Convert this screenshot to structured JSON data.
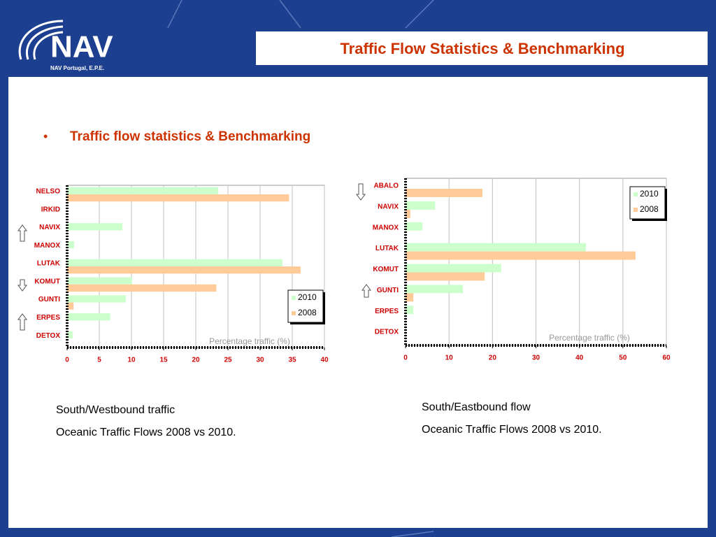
{
  "logo": {
    "name": "NAV",
    "subtitle": "NAV Portugal, E.P.E."
  },
  "title": "Traffic Flow Statistics & Benchmarking",
  "bullet": "Traffic flow statistics & Benchmarking",
  "chart_data": [
    {
      "type": "bar",
      "orientation": "horizontal",
      "categories": [
        "NELSO",
        "IRKID",
        "NAVIX",
        "MANOX",
        "LUTAK",
        "KOMUT",
        "GUNTI",
        "ERPES",
        "DETOX"
      ],
      "series": [
        {
          "name": "2010",
          "color": "#ccffcc",
          "values": [
            23.5,
            0,
            8.6,
            1.1,
            33.5,
            10.1,
            9.1,
            6.7,
            0.9
          ]
        },
        {
          "name": "2008",
          "color": "#ffcc99",
          "values": [
            34.5,
            0,
            0,
            0,
            36.3,
            23.2,
            1.0,
            0,
            0
          ]
        }
      ],
      "xlim": [
        0,
        40
      ],
      "xticks": [
        0,
        5,
        10,
        15,
        20,
        25,
        30,
        35,
        40
      ],
      "xlabel": "Percentage traffic (%)",
      "grid": true,
      "legend": "lower right",
      "captions": [
        "South/Westbound traffic",
        "Oceanic Traffic Flows 2008 vs 2010."
      ]
    },
    {
      "type": "bar",
      "orientation": "horizontal",
      "categories": [
        "ABALO",
        "NAVIX",
        "MANOX",
        "LUTAK",
        "KOMUT",
        "GUNTI",
        "ERPES",
        "DETOX"
      ],
      "series": [
        {
          "name": "2010",
          "color": "#ccffcc",
          "values": [
            0,
            6.8,
            3.9,
            41.5,
            22.0,
            13.2,
            1.8,
            0
          ]
        },
        {
          "name": "2008",
          "color": "#ffcc99",
          "values": [
            17.7,
            1.1,
            0,
            52.9,
            18.2,
            1.8,
            0,
            0
          ]
        }
      ],
      "xlim": [
        0,
        60
      ],
      "xticks": [
        0,
        10,
        20,
        30,
        40,
        50,
        60
      ],
      "xlabel": "Percentage traffic (%)",
      "grid": true,
      "legend": "upper right",
      "captions": [
        "South/Eastbound flow",
        "Oceanic Traffic Flows 2008 vs 2010."
      ]
    }
  ]
}
